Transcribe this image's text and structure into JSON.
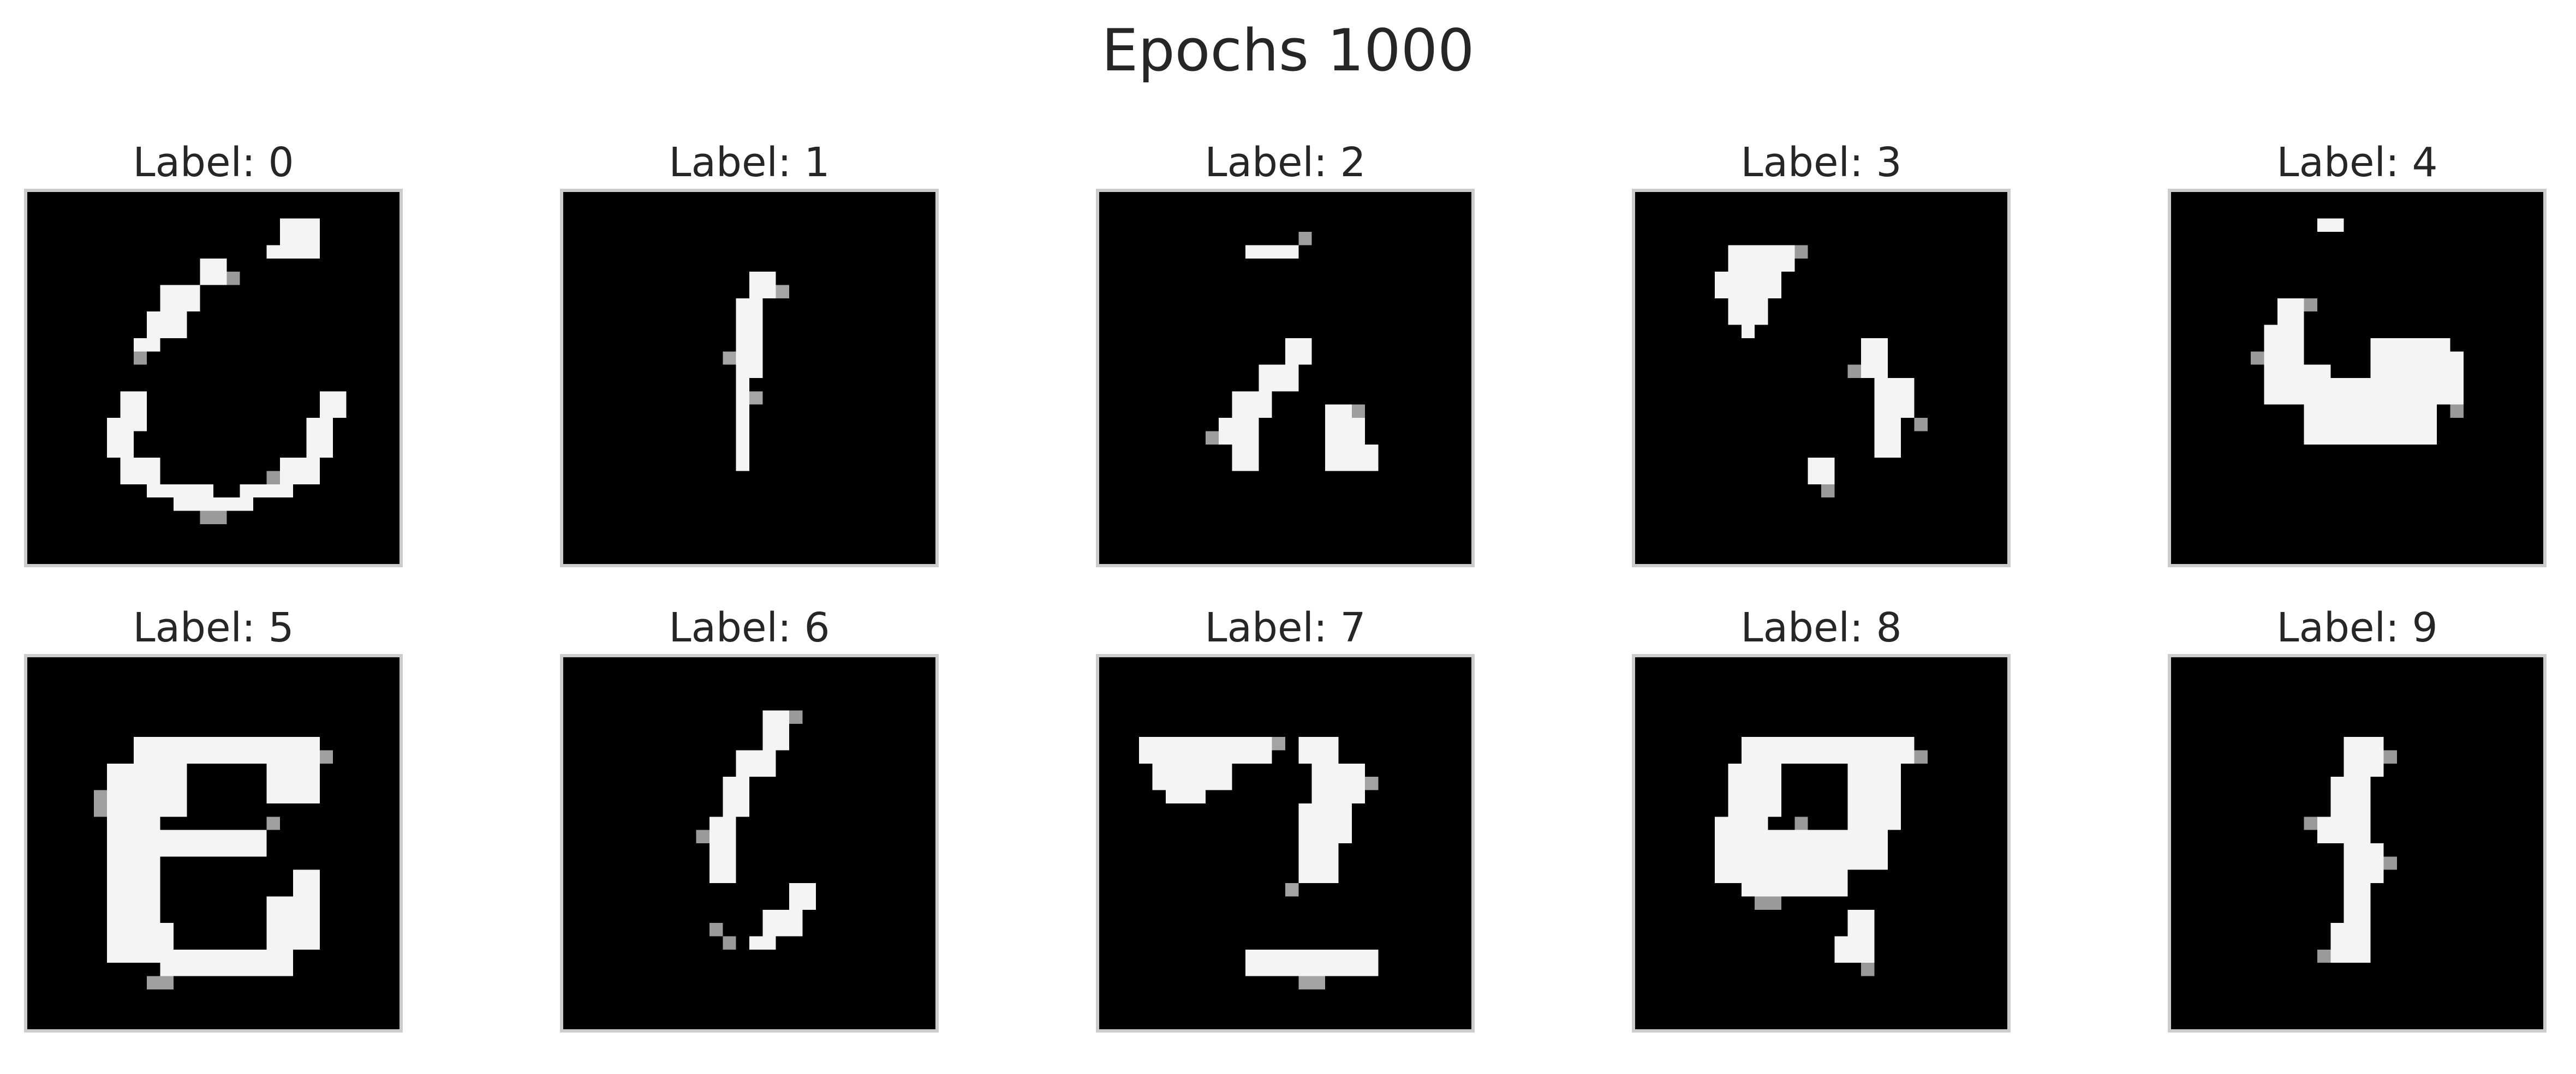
{
  "figure": {
    "title": "Epochs 1000"
  },
  "panels": [
    {
      "label": "Label: 0"
    },
    {
      "label": "Label: 1"
    },
    {
      "label": "Label: 2"
    },
    {
      "label": "Label: 3"
    },
    {
      "label": "Label: 4"
    },
    {
      "label": "Label: 5"
    },
    {
      "label": "Label: 6"
    },
    {
      "label": "Label: 7"
    },
    {
      "label": "Label: 8"
    },
    {
      "label": "Label: 9"
    }
  ],
  "colors": {
    "background": "#ffffff",
    "image_background": "#000000",
    "ink": "#f5f5f5",
    "frame": "#cccccc",
    "text": "#262626"
  }
}
